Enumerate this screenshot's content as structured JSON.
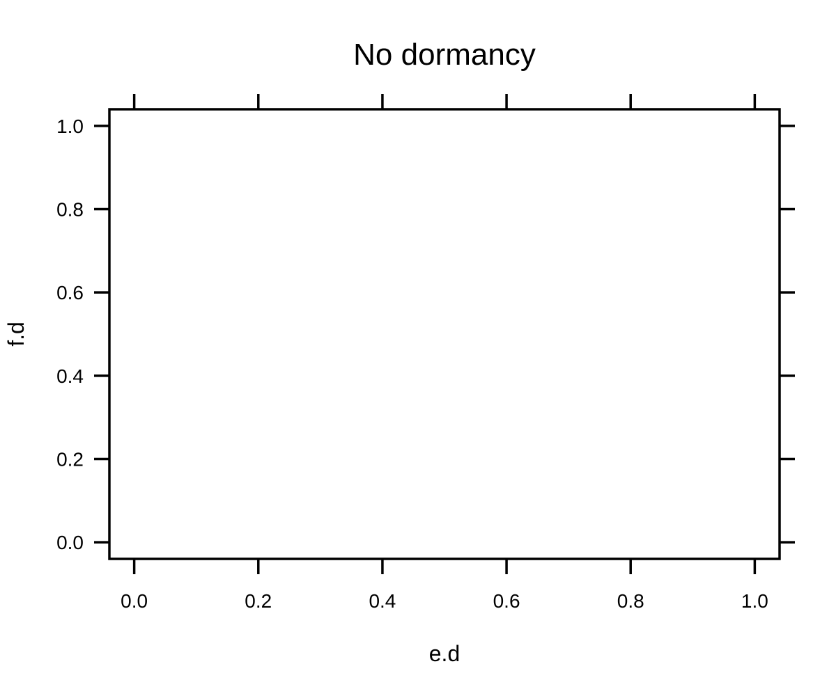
{
  "chart_data": {
    "type": "scatter",
    "title": "No dormancy",
    "xlabel": "e.d",
    "ylabel": "f.d",
    "xlim": [
      -0.04,
      1.04
    ],
    "ylim": [
      -0.04,
      1.04
    ],
    "x_ticks": [
      0.0,
      0.2,
      0.4,
      0.6,
      0.8,
      1.0
    ],
    "x_tick_labels": [
      "0.0",
      "0.2",
      "0.4",
      "0.6",
      "0.8",
      "1.0"
    ],
    "y_ticks": [
      0.0,
      0.2,
      0.4,
      0.6,
      0.8,
      1.0
    ],
    "y_tick_labels": [
      "0.0",
      "0.2",
      "0.4",
      "0.6",
      "0.8",
      "1.0"
    ],
    "series": [
      {
        "x": [],
        "y": []
      }
    ],
    "grid": false,
    "legend": "none"
  }
}
